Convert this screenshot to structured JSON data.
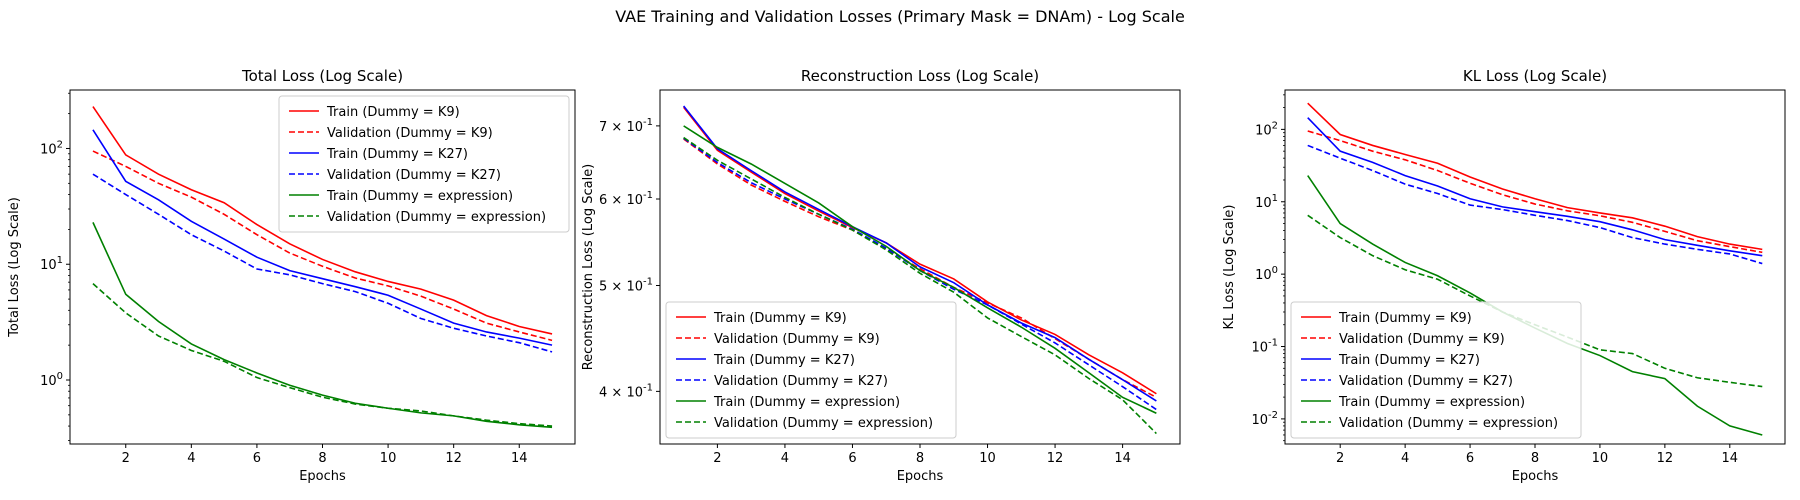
{
  "suptitle": "VAE Training and Validation Losses (Primary Mask = DNAm) - Log Scale",
  "colors": {
    "K9": "#ff0000",
    "K27": "#0000ff",
    "expression": "#008000"
  },
  "chart_data": [
    {
      "type": "line",
      "title": "Total Loss (Log Scale)",
      "xlabel": "Epochs",
      "ylabel": "Total Loss (Log Scale)",
      "yscale": "log",
      "xlim": [
        0.3,
        15.7
      ],
      "ylim": [
        0.28,
        320
      ],
      "xticks": [
        2,
        4,
        6,
        8,
        10,
        12,
        14
      ],
      "yticks": [
        {
          "value": 1,
          "label": "10^0"
        },
        {
          "value": 10,
          "label": "10^1"
        },
        {
          "value": 100,
          "label": "10^2"
        }
      ],
      "legend": "top-right",
      "x": [
        1,
        2,
        3,
        4,
        5,
        6,
        7,
        8,
        9,
        10,
        11,
        12,
        13,
        14,
        15
      ],
      "series": [
        {
          "name": "Train (Dummy = K9)",
          "color": "#ff0000",
          "dash": false,
          "values": [
            230,
            88,
            60,
            44,
            34,
            22,
            15,
            11,
            8.6,
            7.1,
            6.1,
            4.9,
            3.6,
            2.9,
            2.5
          ]
        },
        {
          "name": "Validation (Dummy = K9)",
          "color": "#ff0000",
          "dash": true,
          "values": [
            95,
            70,
            50,
            38,
            27,
            18,
            12.5,
            9.6,
            7.6,
            6.5,
            5.3,
            4.1,
            3.1,
            2.6,
            2.2
          ]
        },
        {
          "name": "Train (Dummy = K27)",
          "color": "#0000ff",
          "dash": false,
          "values": [
            145,
            52,
            36,
            23.5,
            16.5,
            11.5,
            8.8,
            7.5,
            6.4,
            5.4,
            4.1,
            3.1,
            2.6,
            2.3,
            2.0
          ]
        },
        {
          "name": "Validation (Dummy = K27)",
          "color": "#0000ff",
          "dash": true,
          "values": [
            60,
            40,
            27,
            18,
            13,
            9.1,
            8.1,
            6.8,
            5.8,
            4.6,
            3.4,
            2.8,
            2.4,
            2.1,
            1.75
          ]
        },
        {
          "name": "Train (Dummy = expression)",
          "color": "#008000",
          "dash": false,
          "values": [
            23,
            5.5,
            3.2,
            2.05,
            1.5,
            1.15,
            0.9,
            0.74,
            0.63,
            0.57,
            0.52,
            0.49,
            0.44,
            0.41,
            0.39
          ]
        },
        {
          "name": "Validation (Dummy = expression)",
          "color": "#008000",
          "dash": true,
          "values": [
            6.8,
            3.8,
            2.4,
            1.8,
            1.45,
            1.05,
            0.86,
            0.71,
            0.62,
            0.57,
            0.54,
            0.49,
            0.45,
            0.42,
            0.4
          ]
        }
      ]
    },
    {
      "type": "line",
      "title": "Reconstruction Loss (Log Scale)",
      "xlabel": "Epochs",
      "ylabel": "Reconstruction Loss (Log Scale)",
      "yscale": "log",
      "xlim": [
        0.3,
        15.7
      ],
      "ylim": [
        0.358,
        0.755
      ],
      "xticks": [
        2,
        4,
        6,
        8,
        10,
        12,
        14
      ],
      "yticks": [
        {
          "value": 0.4,
          "label": "4 × 10^-1"
        },
        {
          "value": 0.5,
          "label": "5 × 10^-1"
        },
        {
          "value": 0.6,
          "label": "6 × 10^-1"
        },
        {
          "value": 0.7,
          "label": "7 × 10^-1"
        }
      ],
      "legend": "bottom-left",
      "x": [
        1,
        2,
        3,
        4,
        5,
        6,
        7,
        8,
        9,
        10,
        11,
        12,
        13,
        14,
        15
      ],
      "series": [
        {
          "name": "Train (Dummy = K9)",
          "color": "#ff0000",
          "dash": false,
          "values": [
            0.728,
            0.665,
            0.635,
            0.607,
            0.585,
            0.565,
            0.547,
            0.523,
            0.507,
            0.483,
            0.465,
            0.451,
            0.432,
            0.416,
            0.398
          ]
        },
        {
          "name": "Validation (Dummy = K9)",
          "color": "#ff0000",
          "dash": true,
          "values": [
            0.681,
            0.646,
            0.618,
            0.597,
            0.578,
            0.562,
            0.54,
            0.518,
            0.498,
            0.482,
            0.467,
            0.447,
            0.428,
            0.41,
            0.395
          ]
        },
        {
          "name": "Train (Dummy = K27)",
          "color": "#0000ff",
          "dash": false,
          "values": [
            0.73,
            0.667,
            0.637,
            0.609,
            0.587,
            0.566,
            0.547,
            0.52,
            0.503,
            0.48,
            0.462,
            0.448,
            0.428,
            0.41,
            0.392
          ]
        },
        {
          "name": "Validation (Dummy = K27)",
          "color": "#0000ff",
          "dash": true,
          "values": [
            0.682,
            0.648,
            0.621,
            0.6,
            0.581,
            0.563,
            0.541,
            0.516,
            0.496,
            0.48,
            0.461,
            0.443,
            0.423,
            0.404,
            0.385
          ]
        },
        {
          "name": "Train (Dummy = expression)",
          "color": "#008000",
          "dash": false,
          "values": [
            0.7,
            0.669,
            0.646,
            0.62,
            0.595,
            0.566,
            0.543,
            0.516,
            0.498,
            0.477,
            0.458,
            0.438,
            0.416,
            0.395,
            0.382
          ]
        },
        {
          "name": "Validation (Dummy = expression)",
          "color": "#008000",
          "dash": true,
          "values": [
            0.683,
            0.651,
            0.626,
            0.602,
            0.581,
            0.562,
            0.539,
            0.513,
            0.493,
            0.467,
            0.449,
            0.432,
            0.411,
            0.393,
            0.366
          ]
        }
      ]
    },
    {
      "type": "line",
      "title": "KL Loss (Log Scale)",
      "xlabel": "Epochs",
      "ylabel": "KL Loss (Log Scale)",
      "yscale": "log",
      "xlim": [
        0.3,
        15.7
      ],
      "ylim": [
        0.0045,
        350
      ],
      "xticks": [
        2,
        4,
        6,
        8,
        10,
        12,
        14
      ],
      "yticks": [
        {
          "value": 0.01,
          "label": "10^-2"
        },
        {
          "value": 0.1,
          "label": "10^-1"
        },
        {
          "value": 1,
          "label": "10^0"
        },
        {
          "value": 10,
          "label": "10^1"
        },
        {
          "value": 100,
          "label": "10^2"
        }
      ],
      "legend": "bottom-left",
      "x": [
        1,
        2,
        3,
        4,
        5,
        6,
        7,
        8,
        9,
        10,
        11,
        12,
        13,
        14,
        15
      ],
      "series": [
        {
          "name": "Train (Dummy = K9)",
          "color": "#ff0000",
          "dash": false,
          "values": [
            230,
            85,
            60,
            45,
            34,
            22,
            15,
            11,
            8.3,
            7,
            6,
            4.6,
            3.3,
            2.6,
            2.2
          ]
        },
        {
          "name": "Validation (Dummy = K9)",
          "color": "#ff0000",
          "dash": true,
          "values": [
            95,
            70,
            50,
            38,
            27,
            18,
            12.5,
            9.3,
            7.5,
            6.4,
            5.2,
            3.9,
            2.9,
            2.4,
            2.0
          ]
        },
        {
          "name": "Train (Dummy = K27)",
          "color": "#0000ff",
          "dash": false,
          "values": [
            145,
            50,
            35,
            23,
            16.5,
            11,
            8.5,
            7.3,
            6.3,
            5.3,
            4.1,
            3.0,
            2.5,
            2.1,
            1.8
          ]
        },
        {
          "name": "Validation (Dummy = K27)",
          "color": "#0000ff",
          "dash": true,
          "values": [
            60,
            40,
            27,
            17.5,
            13,
            9,
            7.8,
            6.5,
            5.5,
            4.4,
            3.2,
            2.6,
            2.2,
            1.9,
            1.4
          ]
        },
        {
          "name": "Train (Dummy = expression)",
          "color": "#008000",
          "dash": false,
          "values": [
            23,
            5,
            2.6,
            1.45,
            0.95,
            0.55,
            0.3,
            0.18,
            0.11,
            0.075,
            0.045,
            0.036,
            0.015,
            0.008,
            0.006
          ]
        },
        {
          "name": "Validation (Dummy = expression)",
          "color": "#008000",
          "dash": true,
          "values": [
            6.5,
            3.2,
            1.8,
            1.15,
            0.85,
            0.5,
            0.3,
            0.2,
            0.135,
            0.09,
            0.08,
            0.05,
            0.037,
            0.032,
            0.028
          ]
        }
      ]
    }
  ]
}
